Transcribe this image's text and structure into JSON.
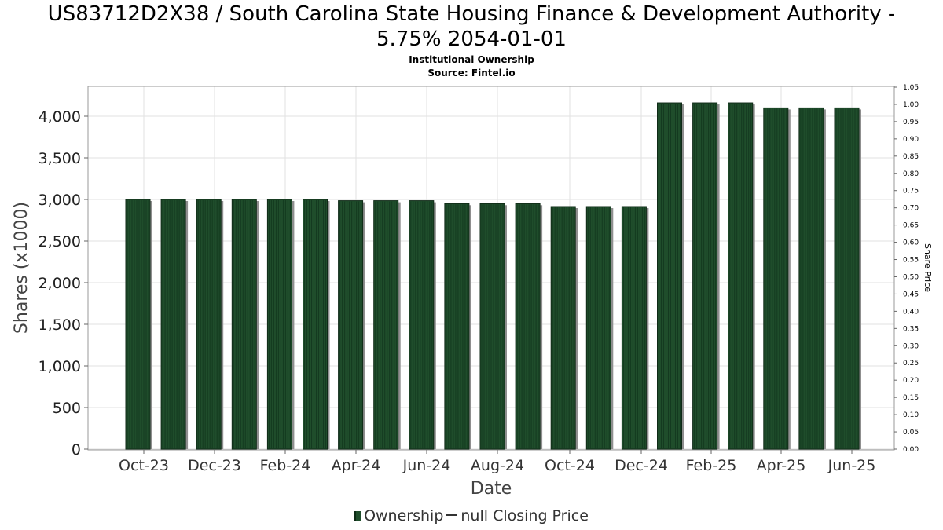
{
  "title_line1": "US83712D2X38 / South Carolina State Housing Finance & Development Authority -",
  "title_line2": "5.75% 2054-01-01",
  "subtitle": "Institutional Ownership",
  "source": "Source: Fintel.io",
  "legend": {
    "ownership": "Ownership",
    "closing_price": "null Closing Price"
  },
  "colors": {
    "bar_fill": "#1f4d2b",
    "bar_shadow": "#8f8f8f",
    "grid": "#e2e2e2"
  },
  "chart_data": {
    "type": "bar",
    "xlabel": "Date",
    "ylabel": "Shares (x1000)",
    "y2label": "Share Price",
    "ylim": [
      0,
      4350
    ],
    "y2lim": [
      0,
      1.05
    ],
    "yticks": [
      0,
      500,
      1000,
      1500,
      2000,
      2500,
      3000,
      3500,
      4000
    ],
    "ytick_labels": [
      "0",
      "500",
      "1,000",
      "1,500",
      "2,000",
      "2,500",
      "3,000",
      "3,500",
      "4,000"
    ],
    "y2ticks": [
      "0.00",
      "0.05",
      "0.10",
      "0.15",
      "0.20",
      "0.25",
      "0.30",
      "0.35",
      "0.40",
      "0.45",
      "0.50",
      "0.55",
      "0.60",
      "0.65",
      "0.70",
      "0.75",
      "0.80",
      "0.85",
      "0.90",
      "0.95",
      "1.00",
      "1.05"
    ],
    "xtick_labels": [
      "Oct-23",
      "Dec-23",
      "Feb-24",
      "Apr-24",
      "Jun-24",
      "Aug-24",
      "Oct-24",
      "Dec-24",
      "Feb-25",
      "Apr-25",
      "Jun-25"
    ],
    "grid": true,
    "legend_position": "bottom",
    "series": [
      {
        "name": "Ownership",
        "values": [
          3000,
          3000,
          3000,
          3000,
          3000,
          3000,
          2985,
          2985,
          2985,
          2950,
          2950,
          2950,
          2915,
          2915,
          2915,
          4160,
          4160,
          4160,
          4100,
          4100,
          4100
        ]
      }
    ]
  }
}
